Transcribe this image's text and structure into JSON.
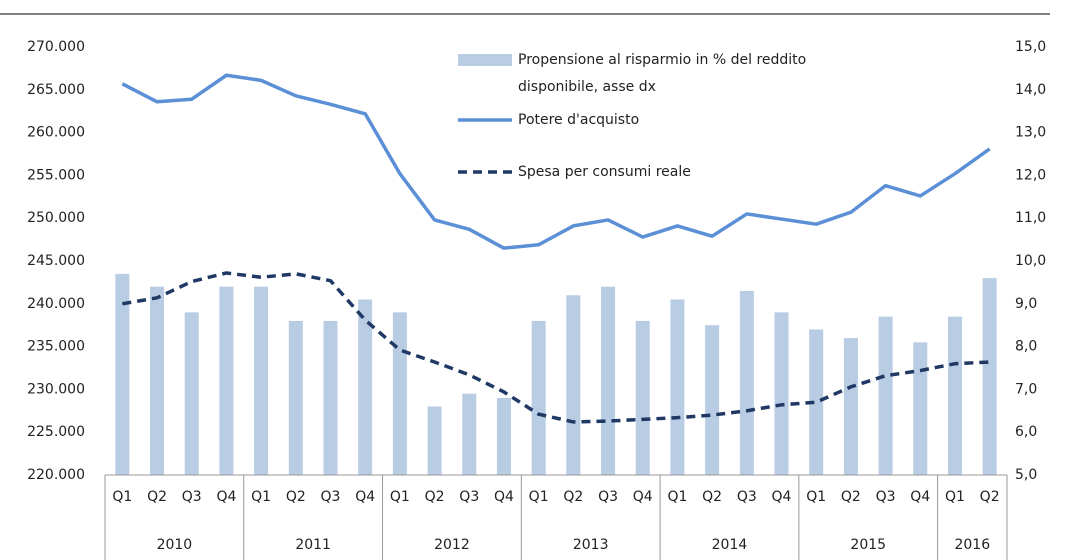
{
  "chart_data": {
    "type": "bar-line",
    "categories": [
      "Q1",
      "Q2",
      "Q3",
      "Q4",
      "Q1",
      "Q2",
      "Q3",
      "Q4",
      "Q1",
      "Q2",
      "Q3",
      "Q4",
      "Q1",
      "Q2",
      "Q3",
      "Q4",
      "Q1",
      "Q2",
      "Q3",
      "Q4",
      "Q1",
      "Q2",
      "Q3",
      "Q4",
      "Q1",
      "Q2"
    ],
    "year_labels": [
      "2010",
      "2011",
      "2012",
      "2013",
      "2014",
      "2015",
      "2016"
    ],
    "series": [
      {
        "name": "Propensione al risparmio in % del reddito disponibile, asse dx",
        "type": "bar",
        "axis": "y2",
        "color": "#b8cce4",
        "values": [
          9.7,
          9.4,
          8.8,
          9.4,
          9.4,
          8.6,
          8.6,
          9.1,
          8.8,
          6.6,
          6.9,
          6.8,
          8.6,
          9.2,
          9.4,
          8.6,
          9.1,
          8.5,
          9.3,
          8.8,
          8.4,
          8.2,
          8.7,
          8.1,
          8.7,
          9.6
        ]
      },
      {
        "name": "Potere d'acquisto",
        "type": "line",
        "color": "#5b8fd6",
        "values": [
          265700,
          263600,
          263900,
          266700,
          266100,
          264300,
          263300,
          262200,
          255200,
          249800,
          248700,
          246500,
          246900,
          249100,
          249800,
          247800,
          249100,
          247900,
          250500,
          249900,
          249300,
          250700,
          253800,
          252600,
          255200,
          258100
        ]
      },
      {
        "name": "Spesa per consumi reale",
        "type": "line",
        "dashed": true,
        "color": "#1f3864",
        "values": [
          240000,
          240700,
          242600,
          243600,
          243100,
          243500,
          242700,
          238100,
          234600,
          233200,
          231700,
          229700,
          227100,
          226200,
          226300,
          226500,
          226700,
          227000,
          227500,
          228200,
          228500,
          230300,
          231600,
          232200,
          233000,
          233200
        ]
      }
    ],
    "ylim": [
      220000,
      270000
    ],
    "yticks": [
      {
        "value": 220000,
        "label": "220.000"
      },
      {
        "value": 225000,
        "label": "225.000"
      },
      {
        "value": 230000,
        "label": "230.000"
      },
      {
        "value": 235000,
        "label": "235.000"
      },
      {
        "value": 240000,
        "label": "240.000"
      },
      {
        "value": 245000,
        "label": "245.000"
      },
      {
        "value": 250000,
        "label": "250.000"
      },
      {
        "value": 255000,
        "label": "255.000"
      },
      {
        "value": 260000,
        "label": "260.000"
      },
      {
        "value": 265000,
        "label": "265.000"
      },
      {
        "value": 270000,
        "label": "270.000"
      }
    ],
    "y2lim": [
      5,
      15
    ],
    "y2ticks": [
      {
        "value": 5,
        "label": "5,0"
      },
      {
        "value": 6,
        "label": "6,0"
      },
      {
        "value": 7,
        "label": "7,0"
      },
      {
        "value": 8,
        "label": "8,0"
      },
      {
        "value": 9,
        "label": "9,0"
      },
      {
        "value": 10,
        "label": "10,0"
      },
      {
        "value": 11,
        "label": "11,0"
      },
      {
        "value": 12,
        "label": "12,0"
      },
      {
        "value": 13,
        "label": "13,0"
      },
      {
        "value": 14,
        "label": "14,0"
      },
      {
        "value": 15,
        "label": "15,0"
      }
    ],
    "grid": false
  }
}
